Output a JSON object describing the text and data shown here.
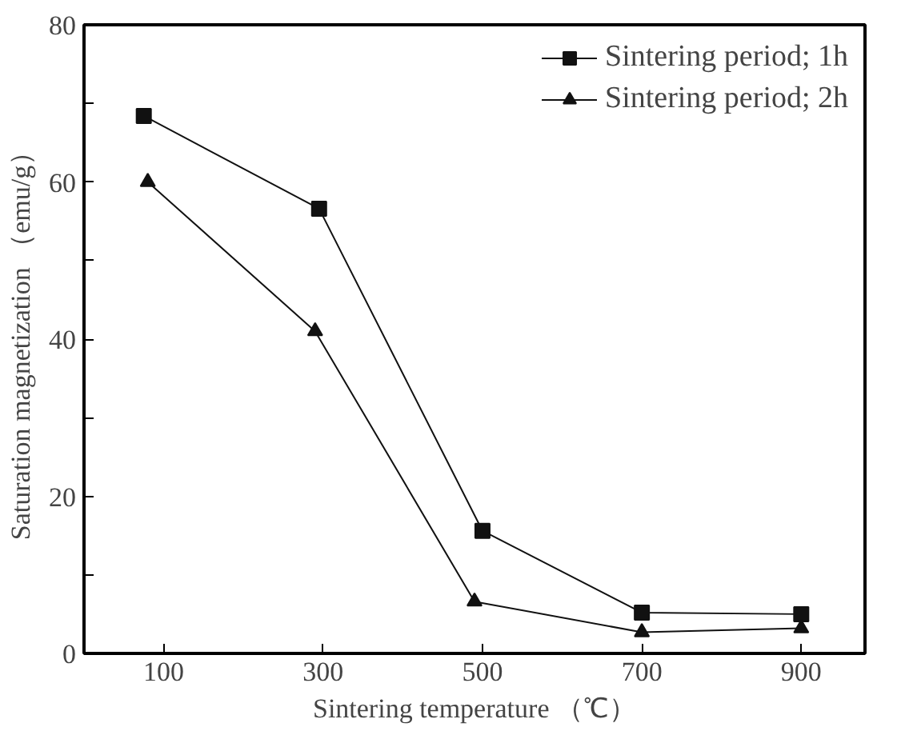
{
  "chart_data": {
    "type": "line",
    "xlabel": "Sintering temperature （℃）",
    "ylabel": "Saturation magnetization （emu/g）",
    "xlim": [
      0,
      980
    ],
    "ylim": [
      0,
      80
    ],
    "xticks": [
      100,
      300,
      500,
      700,
      900
    ],
    "yticks": [
      0,
      {
        "value": 10,
        "label": null
      },
      20,
      {
        "value": 30,
        "label": null
      },
      40,
      {
        "value": 50,
        "label": null
      },
      60,
      {
        "value": 70,
        "label": null
      },
      80
    ],
    "grid": false,
    "legend": "top right",
    "line_style": "solid",
    "series": [
      {
        "name": "Sintering period; 1h",
        "color": "#111111",
        "marker": "square",
        "x": [
          75,
          295,
          500,
          700,
          900
        ],
        "values": [
          68.4,
          56.6,
          15.6,
          5.2,
          5.0
        ]
      },
      {
        "name": "Sintering period; 2h",
        "color": "#111111",
        "marker": "triangle",
        "x": [
          80,
          290,
          490,
          700,
          900
        ],
        "values": [
          60,
          41,
          6.6,
          2.7,
          3.2
        ]
      }
    ]
  }
}
